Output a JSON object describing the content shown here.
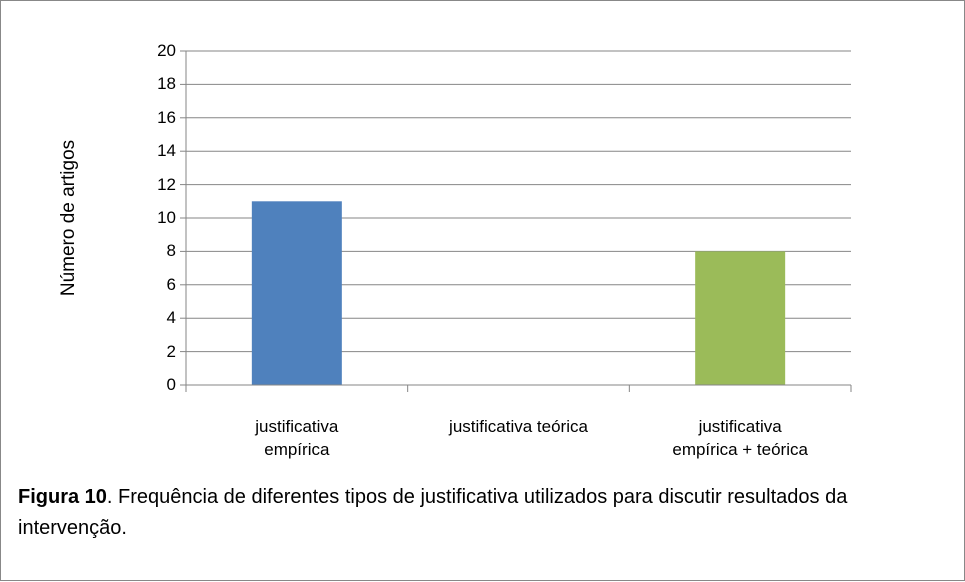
{
  "chart_data": {
    "type": "bar",
    "y_label": "Número de artigos",
    "categories": [
      "justificativa\nempírica",
      "justificativa teórica",
      "justificativa\nempírica + teórica"
    ],
    "values": [
      11,
      0,
      8
    ],
    "colors": [
      "#4f81bd",
      "#c0504d",
      "#9bbb59"
    ],
    "ylim": [
      0,
      20
    ],
    "yticks": [
      0,
      2,
      4,
      6,
      8,
      10,
      12,
      14,
      16,
      18,
      20
    ],
    "grid": true,
    "caption": {
      "label": "Figura 10",
      "text": ". Frequência de diferentes tipos de justificativa utilizados para discutir resultados da intervenção."
    }
  }
}
